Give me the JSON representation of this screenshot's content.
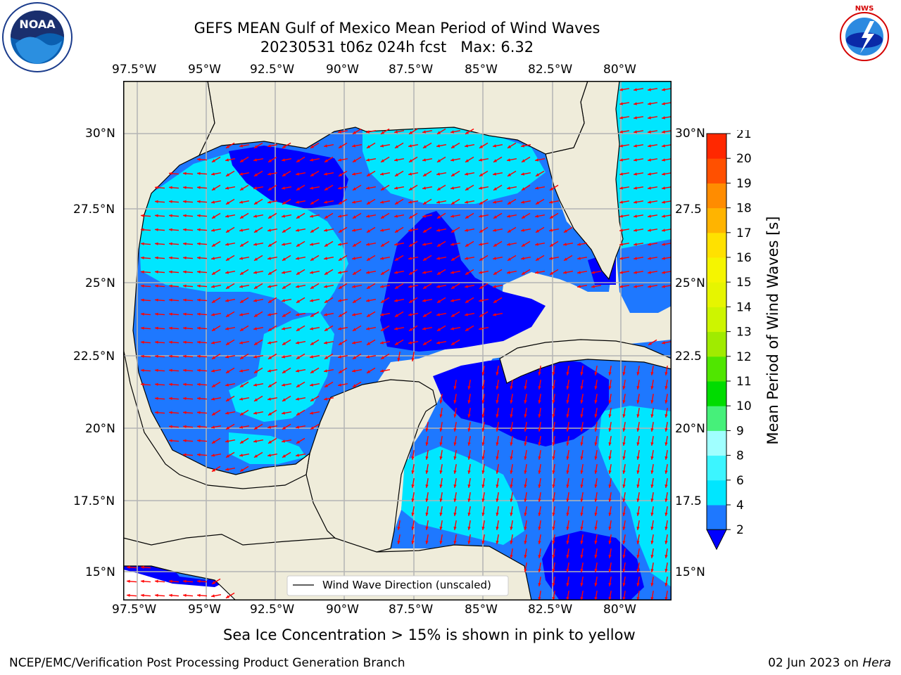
{
  "title_line1": "GEFS MEAN Gulf of Mexico Mean Period of Wind Waves",
  "title_line2": "20230531 t06z 024h fcst   Max: 6.32",
  "lon_ticks": [
    "97.5°W",
    "95°W",
    "92.5°W",
    "90°W",
    "87.5°W",
    "85°W",
    "82.5°W",
    "80°W"
  ],
  "lat_ticks_left": [
    "30°N",
    "27.5°N",
    "25°N",
    "22.5°N",
    "20°N",
    "17.5°N",
    "15°N"
  ],
  "lat_ticks_right": [
    "30°N",
    "27.5",
    "25°N",
    "22.5",
    "20°N",
    "17.5",
    "15°N"
  ],
  "legend_label": "Wind Wave Direction (unscaled)",
  "colorbar": {
    "label": "Mean Period of Wind Waves [s]",
    "ticks": [
      "2",
      "4",
      "6",
      "8",
      "9",
      "10",
      "11",
      "12",
      "13",
      "14",
      "15",
      "16",
      "17",
      "18",
      "19",
      "20",
      "21"
    ],
    "colors": [
      "#0000ff",
      "#1e78ff",
      "#00e6ff",
      "#3cf5ff",
      "#a0ffff",
      "#46f07a",
      "#00dc00",
      "#50e600",
      "#a0eb00",
      "#cdf500",
      "#e6f500",
      "#f5f500",
      "#ffe100",
      "#ffb400",
      "#ff8c00",
      "#ff5000",
      "#ff2800",
      "#ff0000"
    ]
  },
  "caption": "Sea Ice Concentration > 15% is shown in pink to yellow",
  "footer_left": "NCEP/EMC/Verification Post Processing Product Generation Branch",
  "footer_right_prefix": "02 Jun 2023 on ",
  "footer_right_host": "Hera",
  "logos": {
    "left": "NOAA",
    "right": "NATIONAL WEATHER SERVICE"
  },
  "colors": {
    "land": "#efecda",
    "arrow": "#ff0000",
    "grid": "#b4b4b4"
  }
}
